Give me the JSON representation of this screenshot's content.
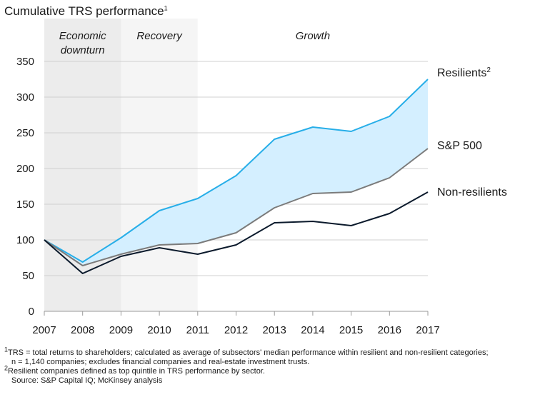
{
  "title": {
    "text": "Cumulative TRS performance",
    "note": "1"
  },
  "chart_data": {
    "type": "line",
    "x": [
      2007,
      2008,
      2009,
      2010,
      2011,
      2012,
      2013,
      2014,
      2015,
      2016,
      2017
    ],
    "ylim": [
      0,
      350
    ],
    "yticks": [
      0,
      50,
      100,
      150,
      200,
      250,
      300,
      350
    ],
    "grid": true,
    "phases": [
      {
        "label_lines": [
          "Economic",
          "downturn"
        ],
        "start": 2007,
        "end": 2009,
        "color": "#ececec"
      },
      {
        "label_lines": [
          "Recovery"
        ],
        "start": 2009,
        "end": 2011,
        "color": "#f5f5f5"
      },
      {
        "label_lines": [
          "Growth"
        ],
        "start": 2011,
        "end": 2017,
        "color": "#ffffff"
      }
    ],
    "band": {
      "between": [
        "Resilients",
        "S&P 500"
      ],
      "color": "#d4efff"
    },
    "series": [
      {
        "name": "Resilients",
        "note": "2",
        "color": "#27aee8",
        "values": [
          100,
          69,
          103,
          141,
          158,
          190,
          241,
          258,
          252,
          273,
          325
        ]
      },
      {
        "name": "S&P 500",
        "note": "",
        "color": "#7b7b7b",
        "values": [
          100,
          64,
          80,
          93,
          95,
          110,
          145,
          165,
          167,
          187,
          228
        ]
      },
      {
        "name": "Non-resilients",
        "note": "",
        "color": "#0b1a2c",
        "values": [
          100,
          53,
          77,
          89,
          80,
          93,
          124,
          126,
          120,
          137,
          167
        ]
      }
    ]
  },
  "footnotes": [
    {
      "mark": "1",
      "text": "TRS = total returns to shareholders; calculated as average of subsectors' median performance within resilient and non-resilient categories;",
      "indent": false
    },
    {
      "mark": "",
      "text": "n = 1,140 companies; excludes financial companies and real-estate investment trusts.",
      "indent": true
    },
    {
      "mark": "2",
      "text": "Resilient companies defined as top quintile in TRS performance by sector.",
      "indent": false
    },
    {
      "mark": "",
      "text": "Source: S&P Capital IQ; McKinsey analysis",
      "indent": true
    }
  ]
}
